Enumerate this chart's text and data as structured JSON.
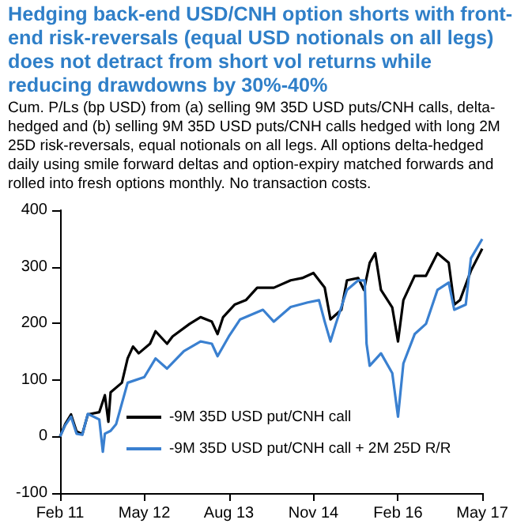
{
  "chart_data": {
    "type": "line",
    "title": "Hedging back-end USD/CNH option shorts with front-end risk-reversals (equal USD notionals on all legs) does not detract from short vol returns while reducing drawdowns by 30%-40%",
    "subtitle": "Cum. P/Ls (bp USD) from (a) selling 9M 35D USD puts/CNH calls, delta-hedged and (b) selling 9M 35D USD puts/CNH calls hedged with long 2M 25D  risk-reversals, equal notionals on all legs. All options delta-hedged daily using smile forward deltas and option-expiry matched forwards and rolled into fresh options monthly. No transaction costs.",
    "series": [
      {
        "name": "-9M 35D USD put/CNH call",
        "color": "#000000",
        "x": [
          "2011-02",
          "2011-03",
          "2011-04",
          "2011-05",
          "2011-06",
          "2011-07",
          "2011-09",
          "2011-10",
          "2011-10-20",
          "2011-11",
          "2012-01",
          "2012-02",
          "2012-03",
          "2012-04",
          "2012-06",
          "2012-07",
          "2012-09",
          "2012-10",
          "2013-01",
          "2013-03",
          "2013-05",
          "2013-06",
          "2013-07",
          "2013-09",
          "2013-11",
          "2014-01",
          "2014-04",
          "2014-07",
          "2014-09",
          "2014-11",
          "2015-01",
          "2015-02",
          "2015-04",
          "2015-05",
          "2015-07",
          "2015-08",
          "2015-09",
          "2015-10",
          "2015-11",
          "2016-01",
          "2016-02",
          "2016-03",
          "2016-05",
          "2016-07",
          "2016-09",
          "2016-11",
          "2016-12",
          "2017-01",
          "2017-03",
          "2017-05"
        ],
        "values": [
          0,
          22,
          39,
          9,
          4,
          39,
          43,
          73,
          26,
          78,
          95,
          138,
          159,
          147,
          164,
          186,
          164,
          177,
          199,
          211,
          203,
          181,
          211,
          233,
          241,
          263,
          263,
          276,
          280,
          289,
          263,
          207,
          224,
          276,
          280,
          259,
          307,
          324,
          259,
          228,
          168,
          241,
          284,
          284,
          324,
          307,
          233,
          241,
          293,
          332
        ]
      },
      {
        "name": "-9M 35D USD put/CNH call + 2M 25D R/R",
        "color": "#3a80d0",
        "x": [
          "2011-02",
          "2011-03",
          "2011-04",
          "2011-05",
          "2011-06",
          "2011-07",
          "2011-09",
          "2011-09-20",
          "2011-10",
          "2011-11",
          "2011-12",
          "2012-02",
          "2012-05",
          "2012-07",
          "2012-09",
          "2012-12",
          "2013-03",
          "2013-05",
          "2013-06",
          "2013-08",
          "2013-10",
          "2014-02",
          "2014-04",
          "2014-07",
          "2014-10",
          "2014-12",
          "2015-01",
          "2015-02",
          "2015-03",
          "2015-05",
          "2015-07",
          "2015-08-05",
          "2015-08-15",
          "2015-09",
          "2015-11",
          "2016-01",
          "2016-02",
          "2016-03",
          "2016-05",
          "2016-07",
          "2016-09",
          "2016-11",
          "2016-12",
          "2017-02",
          "2017-03",
          "2017-05"
        ],
        "values": [
          0,
          20,
          35,
          5,
          3,
          40,
          30,
          -27,
          5,
          10,
          22,
          95,
          105,
          138,
          120,
          151,
          168,
          164,
          142,
          177,
          207,
          224,
          203,
          229,
          237,
          241,
          203,
          168,
          198,
          259,
          276,
          276,
          164,
          125,
          147,
          112,
          35,
          129,
          181,
          199,
          259,
          272,
          224,
          233,
          315,
          349
        ]
      }
    ],
    "xlim": [
      "2011-02",
      "2017-05"
    ],
    "xticks": [
      {
        "value": "2011-02",
        "label": "Feb 11"
      },
      {
        "value": "2012-05",
        "label": "May 12"
      },
      {
        "value": "2013-08",
        "label": "Aug 13"
      },
      {
        "value": "2014-11",
        "label": "Nov 14"
      },
      {
        "value": "2016-02",
        "label": "Feb 16"
      },
      {
        "value": "2017-05",
        "label": "May 17"
      }
    ],
    "ylim": [
      -100,
      400
    ],
    "yticks": [
      -100,
      0,
      100,
      200,
      300,
      400
    ],
    "grid": false,
    "legend": "bottom",
    "marker": "none",
    "line_style": "solid"
  }
}
